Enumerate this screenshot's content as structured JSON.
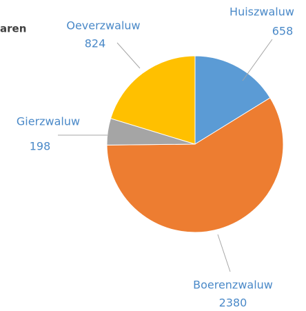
{
  "chart_data": {
    "type": "pie",
    "title": "aren",
    "categories": [
      "Huiszwaluw",
      "Boerenzwaluw",
      "Gierzwaluw",
      "Oeverzwaluw"
    ],
    "values": [
      658,
      2380,
      198,
      824
    ],
    "colors": [
      "#5b9bd5",
      "#ed7d31",
      "#a5a5a5",
      "#ffc000"
    ]
  }
}
